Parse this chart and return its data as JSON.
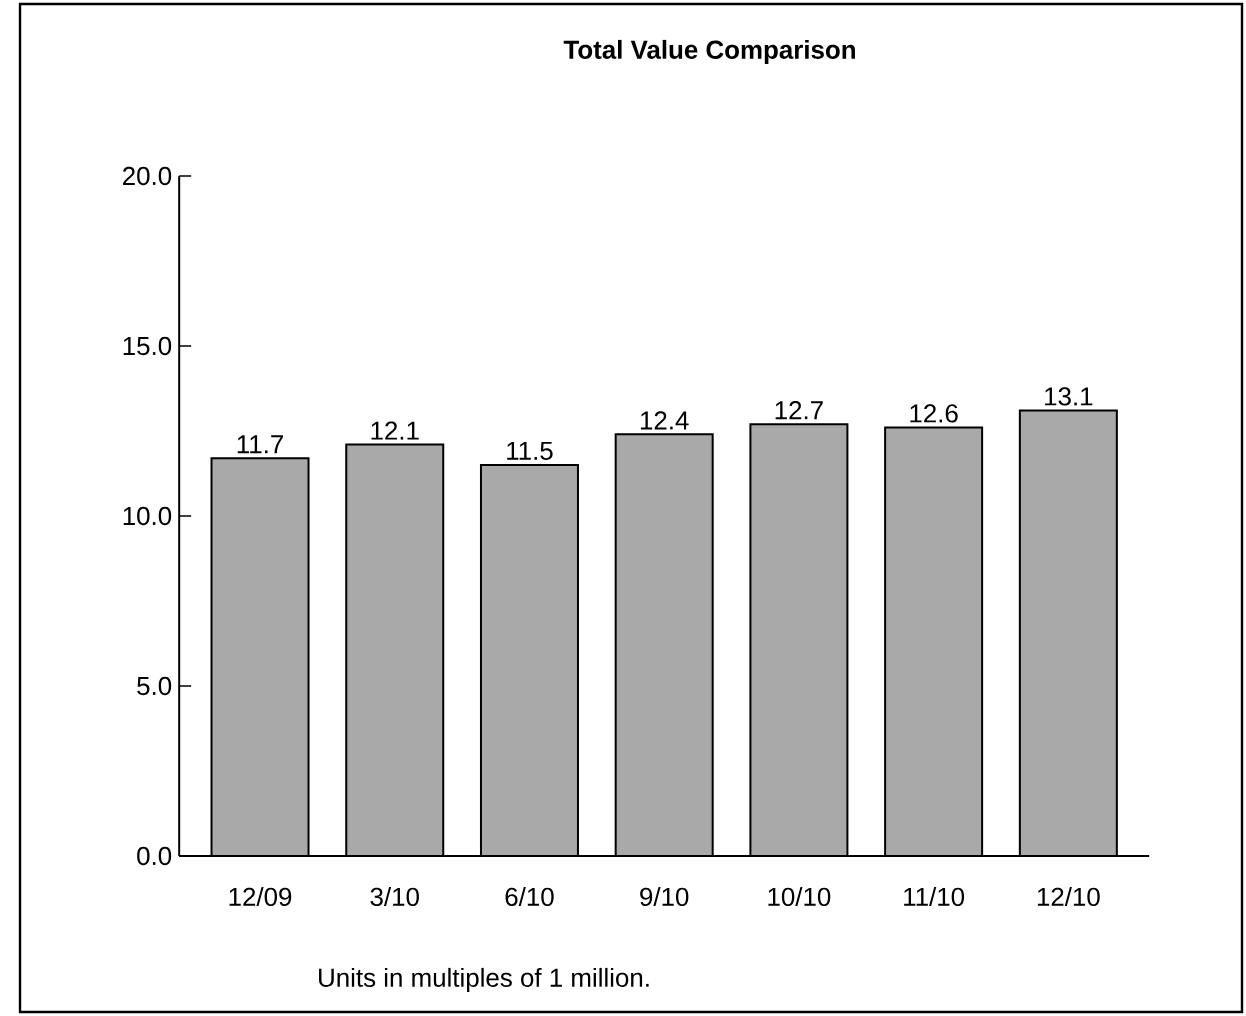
{
  "chart_data": {
    "type": "bar",
    "title": "Total Value Comparison",
    "categories": [
      "12/09",
      "3/10",
      "6/10",
      "9/10",
      "10/10",
      "11/10",
      "12/10"
    ],
    "values": [
      11.7,
      12.1,
      11.5,
      12.4,
      12.7,
      12.6,
      13.1
    ],
    "color": "#a9a9a9",
    "ylim": [
      0,
      20
    ],
    "yticks": [
      {
        "value": 0,
        "label": "0.0"
      },
      {
        "value": 5,
        "label": "5.0"
      },
      {
        "value": 10,
        "label": "10.0"
      },
      {
        "value": 15,
        "label": "15.0"
      },
      {
        "value": 20,
        "label": "20.0"
      }
    ],
    "data_labels": true,
    "annotations": [
      "Units in multiples of 1 million."
    ]
  }
}
